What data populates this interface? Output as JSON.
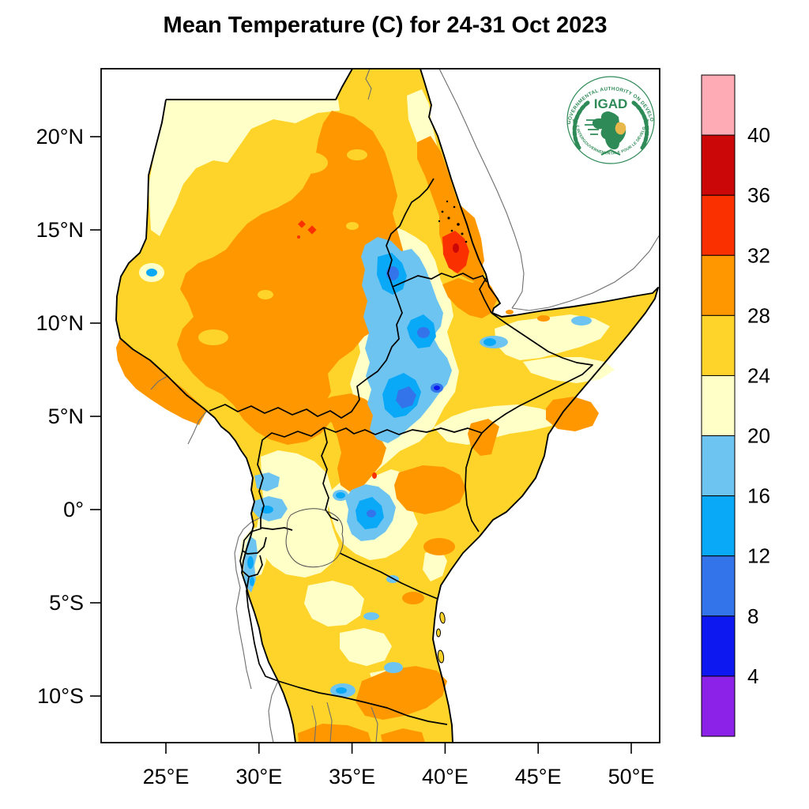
{
  "title": "Mean Temperature (C) for 24-31 Oct 2023",
  "map": {
    "lat_ticks": [
      "20°N",
      "15°N",
      "10°N",
      "5°N",
      "0°",
      "5°S",
      "10°S"
    ],
    "lon_ticks": [
      "25°E",
      "30°E",
      "35°E",
      "40°E",
      "45°E",
      "50°E"
    ]
  },
  "colorbar": {
    "tick_labels": [
      "40",
      "36",
      "32",
      "28",
      "24",
      "20",
      "16",
      "12",
      "8",
      "4"
    ],
    "colors_top_to_bottom": [
      "#FFABB5",
      "#CC0707",
      "#FA3000",
      "#FF9800",
      "#FFD42A",
      "#FFFFC8",
      "#6EC4F0",
      "#0AA9F7",
      "#3374EB",
      "#0D18F0",
      "#8C22E8"
    ],
    "units": "C"
  },
  "palette": {
    "gt40": "#FFABB5",
    "t36_40": "#CC0707",
    "t32_36": "#FA3000",
    "t28_32": "#FF9800",
    "t24_28": "#FFD42A",
    "t20_24": "#FFFFC8",
    "t16_20": "#6EC4F0",
    "t12_16": "#0AA9F7",
    "t8_12": "#3374EB",
    "t4_8": "#0D18F0",
    "lt4": "#8C22E8",
    "border_black": "#000000",
    "border_thin": "#6e6e6e",
    "lake_line": "#4a4a4a"
  },
  "logo": {
    "acronym": "IGAD",
    "text_top": "INTERGOVERNMENTAL AUTHORITY ON DEVELOPMENT",
    "text_bottom": "AUTORITÉ INTERGOUVERNEMENTALE POUR LE DÉVELOPPEMENT",
    "green": "#2E8B57",
    "gold": "#E8B84B"
  }
}
